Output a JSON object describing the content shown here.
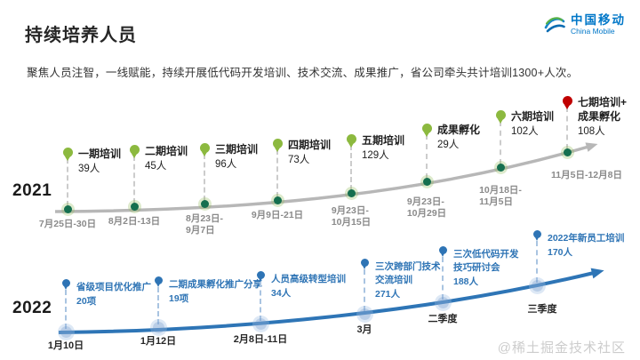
{
  "header": {
    "title": "持续培养人员",
    "subtitle": "聚焦人员注智，一线赋能，持续开展低代码开发培训、技术交流、成果推广，省公司牵头共计培训1300+人次。"
  },
  "logo": {
    "name_cn": "中国移动",
    "name_en": "China Mobile",
    "brand_color": "#0077c8",
    "icon": "swirl-icon"
  },
  "watermark": "@稀土掘金技术社区",
  "timelines": [
    {
      "year": "2021",
      "colors": {
        "line": "#b7b7b7",
        "arrow": "#b7b7b7",
        "balloon": "#8cb93f",
        "node": "#156f4f",
        "node_halo": "rgba(141,186,87,0.30)",
        "connector": "#cccccc",
        "label": "#1f1f1f",
        "count": "#1f1f1f",
        "date": "#8a8a8a"
      },
      "milestones": [
        {
          "label_lines": [
            "一期培训"
          ],
          "count": "39人",
          "date_lines": [
            "7月25日-30日"
          ]
        },
        {
          "label_lines": [
            "二期培训"
          ],
          "count": "45人",
          "date_lines": [
            "8月2日-13日"
          ]
        },
        {
          "label_lines": [
            "三期培训"
          ],
          "count": "96人",
          "date_lines": [
            "8月23日-",
            "9月7日"
          ]
        },
        {
          "label_lines": [
            "四期培训"
          ],
          "count": "73人",
          "date_lines": [
            "9月9日-21日"
          ]
        },
        {
          "label_lines": [
            "五期培训"
          ],
          "count": "129人",
          "date_lines": [
            "9月23日-",
            "10月15日"
          ]
        },
        {
          "label_lines": [
            "成果孵化"
          ],
          "count": "29人",
          "date_lines": [
            "9月23日-",
            "10月29日"
          ]
        },
        {
          "label_lines": [
            "六期培训"
          ],
          "count": "102人",
          "date_lines": [
            "10月18日-",
            "11月5日"
          ]
        },
        {
          "label_lines": [
            "七期培训+",
            "成果孵化"
          ],
          "count": "108人",
          "date_lines": [
            "11月5日-12月8日"
          ],
          "balloon_color": "#c00000"
        }
      ]
    },
    {
      "year": "2022",
      "colors": {
        "line": "#2e75b6",
        "arrow": "#2e75b6",
        "balloon": "#2e74b5",
        "node": "rgba(130,166,212,0.55)",
        "node_halo": "rgba(158,190,226,0.35)",
        "connector": "#a9c4e1",
        "label": "#2e74b5",
        "count": "#2e74b5",
        "date": "#262626"
      },
      "milestones": [
        {
          "label_lines": [
            "省级项目优化推广"
          ],
          "count": "20项",
          "date_lines": [
            "1月10日"
          ]
        },
        {
          "label_lines": [
            "二期成果孵化推广分享"
          ],
          "count": "19项",
          "date_lines": [
            "1月12日"
          ]
        },
        {
          "label_lines": [
            "人员高级转型培训"
          ],
          "count": "34人",
          "date_lines": [
            "2月8日-11日"
          ]
        },
        {
          "label_lines": [
            "三次跨部门技术",
            "交流培训"
          ],
          "count": "271人",
          "date_lines": [
            "3月"
          ]
        },
        {
          "label_lines": [
            "三次低代码开发",
            "技巧研讨会"
          ],
          "count": "188人",
          "date_lines": [
            "二季度"
          ]
        },
        {
          "label_lines": [
            "2022年新员工培训"
          ],
          "count": "170人",
          "date_lines": [
            "三季度"
          ]
        }
      ]
    }
  ]
}
